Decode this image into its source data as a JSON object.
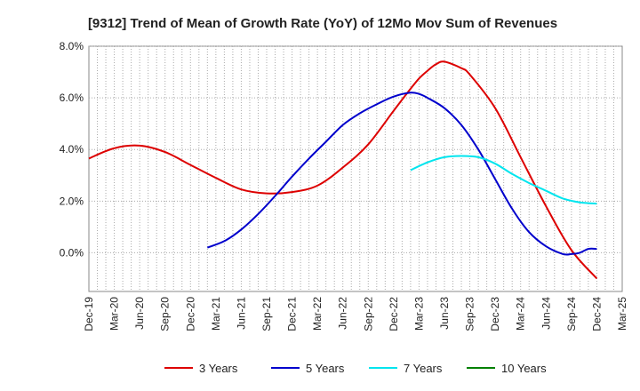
{
  "chart_data": {
    "type": "line",
    "title": "[9312]  Trend of Mean of Growth Rate (YoY) of 12Mo Mov Sum of Revenues",
    "xlabel": "",
    "ylabel": "",
    "ylim": [
      -1.5,
      8.0
    ],
    "y_ticks": [
      0.0,
      2.0,
      4.0,
      6.0,
      8.0
    ],
    "y_tick_labels": [
      "0.0%",
      "2.0%",
      "4.0%",
      "6.0%",
      "8.0%"
    ],
    "x_tick_labels": [
      "Dec-19",
      "Mar-20",
      "Jun-20",
      "Sep-20",
      "Dec-20",
      "Mar-21",
      "Jun-21",
      "Sep-21",
      "Dec-21",
      "Mar-22",
      "Jun-22",
      "Sep-22",
      "Dec-22",
      "Mar-23",
      "Jun-23",
      "Sep-23",
      "Dec-23",
      "Mar-24",
      "Jun-24",
      "Sep-24",
      "Dec-24",
      "Mar-25"
    ],
    "x_unit": "months since Dec-19",
    "grid": true,
    "legend_position": "bottom",
    "series": [
      {
        "name": "3 Years",
        "color": "#dd0000",
        "x": [
          0,
          3,
          6,
          9,
          12,
          15,
          18,
          21,
          24,
          27,
          30,
          33,
          36,
          38,
          39,
          40,
          41,
          42,
          44,
          45,
          48,
          51,
          54,
          57,
          60
        ],
        "values": [
          3.65,
          4.05,
          4.15,
          3.9,
          3.4,
          2.9,
          2.45,
          2.3,
          2.35,
          2.6,
          3.3,
          4.2,
          5.5,
          6.35,
          6.75,
          7.05,
          7.3,
          7.4,
          7.15,
          6.9,
          5.6,
          3.7,
          1.8,
          0.1,
          -1.0
        ]
      },
      {
        "name": "5 Years",
        "color": "#0000cc",
        "x": [
          14,
          16,
          18,
          20,
          22,
          24,
          26,
          28,
          30,
          32,
          34,
          36,
          38,
          39,
          40,
          42,
          44,
          46,
          48,
          50,
          52,
          54,
          56,
          57,
          58,
          59,
          60
        ],
        "values": [
          0.2,
          0.45,
          0.9,
          1.5,
          2.2,
          2.95,
          3.65,
          4.3,
          4.95,
          5.4,
          5.75,
          6.05,
          6.2,
          6.15,
          6.0,
          5.6,
          4.95,
          4.0,
          2.85,
          1.7,
          0.8,
          0.25,
          -0.05,
          -0.05,
          0.0,
          0.15,
          0.15
        ]
      },
      {
        "name": "7 Years",
        "color": "#00e5ee",
        "x": [
          38,
          40,
          42,
          44,
          46,
          48,
          50,
          52,
          54,
          56,
          58,
          60
        ],
        "values": [
          3.2,
          3.5,
          3.7,
          3.75,
          3.7,
          3.45,
          3.05,
          2.7,
          2.4,
          2.1,
          1.95,
          1.9
        ]
      },
      {
        "name": "10 Years",
        "color": "#008000",
        "x": [],
        "values": []
      }
    ]
  }
}
